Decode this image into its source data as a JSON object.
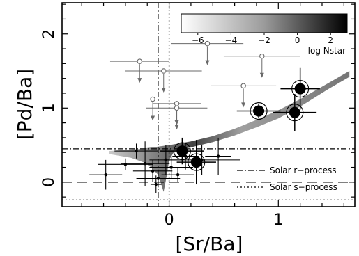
{
  "chart_data": {
    "type": "scatter",
    "xlabel": "[Sr/Ba]",
    "ylabel": "[Pd/Ba]",
    "xlim": [
      -0.98,
      1.7
    ],
    "ylim": [
      -0.33,
      2.42
    ],
    "x_ticks": [
      0,
      1
    ],
    "y_ticks": [
      0,
      1,
      2
    ],
    "legend": [
      {
        "label": "Solar r−process",
        "style": "dash-dot"
      },
      {
        "label": "Solar s−process",
        "style": "dotted"
      }
    ],
    "reference_lines": {
      "r_process": {
        "x": -0.1,
        "y": 0.45
      },
      "s_process": {
        "x": 0.0,
        "y": -0.24
      }
    },
    "colorbar": {
      "label": "log Nstar",
      "range": [
        -7,
        3
      ],
      "ticks": [
        -6,
        -4,
        -2,
        0,
        2
      ],
      "tick_labels": [
        "−6",
        "−4",
        "−2",
        "0",
        "2"
      ]
    },
    "model_band": {
      "upper": [
        [
          -0.55,
          0.42
        ],
        [
          -0.25,
          0.45
        ],
        [
          0.0,
          0.5
        ],
        [
          0.2,
          0.55
        ],
        [
          0.4,
          0.62
        ],
        [
          0.6,
          0.72
        ],
        [
          0.8,
          0.84
        ],
        [
          1.0,
          0.97
        ],
        [
          1.2,
          1.12
        ],
        [
          1.45,
          1.33
        ],
        [
          1.65,
          1.5
        ]
      ],
      "lower": [
        [
          1.65,
          1.42
        ],
        [
          1.45,
          1.25
        ],
        [
          1.2,
          1.02
        ],
        [
          1.0,
          0.86
        ],
        [
          0.8,
          0.74
        ],
        [
          0.6,
          0.63
        ],
        [
          0.4,
          0.54
        ],
        [
          0.2,
          0.47
        ],
        [
          0.05,
          0.42
        ],
        [
          0.0,
          0.3
        ],
        [
          -0.02,
          0.1
        ],
        [
          -0.05,
          -0.13
        ],
        [
          -0.1,
          0.1
        ],
        [
          -0.2,
          0.25
        ],
        [
          -0.35,
          0.33
        ],
        [
          -0.55,
          0.38
        ]
      ]
    },
    "upper_limits": [
      {
        "x": -0.27,
        "y": 1.63,
        "xerr": 0.27
      },
      {
        "x": -0.05,
        "y": 1.5,
        "xerr": 0.35
      },
      {
        "x": -0.15,
        "y": 1.12,
        "xerr": 0.17
      },
      {
        "x": 0.07,
        "y": 1.06,
        "xerr": 0.22
      },
      {
        "x": 0.07,
        "y": 1.0,
        "xerr": 0.28
      },
      {
        "x": 0.35,
        "y": 1.87,
        "xerr": 0.33
      },
      {
        "x": 0.68,
        "y": 1.3,
        "xerr": 0.3
      },
      {
        "x": 0.85,
        "y": 1.7,
        "xerr": 0.35
      }
    ],
    "points_large": [
      {
        "x": 0.12,
        "y": 0.42,
        "xerr": 0.2,
        "yerr": 0.18
      },
      {
        "x": 0.25,
        "y": 0.27,
        "xerr": 0.18,
        "yerr": 0.3
      },
      {
        "x": 0.82,
        "y": 0.96,
        "xerr": 0.2,
        "yerr": 0.1
      },
      {
        "x": 1.15,
        "y": 0.94,
        "xerr": 0.2,
        "yerr": 0.25
      },
      {
        "x": 1.2,
        "y": 1.26,
        "xerr": 0.18,
        "yerr": 0.28
      }
    ],
    "points_small": [
      {
        "x": -0.58,
        "y": 0.1,
        "xerr": 0.15,
        "yerr": 0.2
      },
      {
        "x": -0.4,
        "y": 0.24,
        "xerr": 0.25,
        "yerr": 0.08
      },
      {
        "x": -0.3,
        "y": 0.42,
        "xerr": 0.2,
        "yerr": 0.1
      },
      {
        "x": -0.22,
        "y": 0.25,
        "xerr": 0.22,
        "yerr": 0.3
      },
      {
        "x": -0.15,
        "y": 0.15,
        "xerr": 0.18,
        "yerr": 0.15
      },
      {
        "x": -0.1,
        "y": 0.05,
        "xerr": 0.2,
        "yerr": 0.12
      },
      {
        "x": -0.03,
        "y": 0.3,
        "xerr": 0.15,
        "yerr": 0.2
      },
      {
        "x": 0.02,
        "y": 0.2,
        "xerr": 0.2,
        "yerr": 0.15
      },
      {
        "x": 0.08,
        "y": 0.1,
        "xerr": 0.15,
        "yerr": 0.1
      },
      {
        "x": 0.15,
        "y": 0.35,
        "xerr": 0.12,
        "yerr": 0.18
      },
      {
        "x": 0.3,
        "y": 0.3,
        "xerr": 0.35,
        "yerr": 0.2
      },
      {
        "x": 0.45,
        "y": 0.35,
        "xerr": 0.12,
        "yerr": 0.25
      },
      {
        "x": -0.12,
        "y": -0.03,
        "xerr": 0.05,
        "yerr": 0.12
      }
    ]
  }
}
